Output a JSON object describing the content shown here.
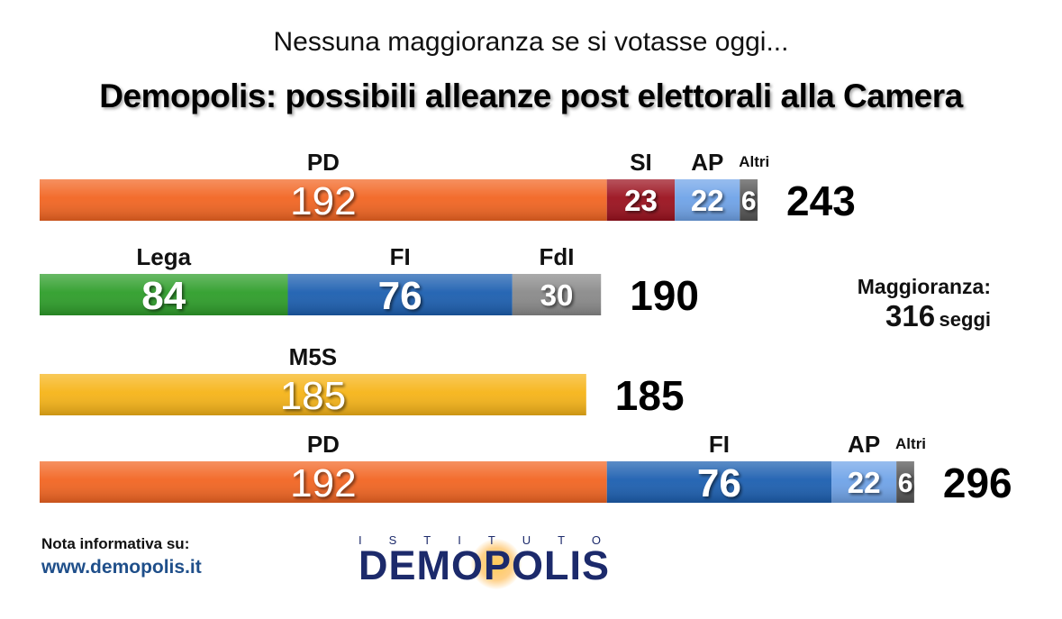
{
  "header": {
    "subtitle": "Nessuna maggioranza se si votasse oggi...",
    "title": "Demopolis: possibili alleanze post elettorali alla Camera"
  },
  "majority": {
    "label": "Maggioranza:",
    "value": "316",
    "unit": "seggi"
  },
  "footer": {
    "note": "Nota informativa su:",
    "url": "www.demopolis.it",
    "logo_top": "ISTITUTO",
    "logo_name": "DEMOPOLIS"
  },
  "chart_data": {
    "type": "bar",
    "orientation": "horizontal-stacked",
    "rows": [
      {
        "total": 243,
        "segments": [
          {
            "name": "PD",
            "value": 192,
            "color": "#f26522"
          },
          {
            "name": "SI",
            "value": 23,
            "color": "#9b111e"
          },
          {
            "name": "AP",
            "value": 22,
            "color": "#6fa3e8"
          },
          {
            "name": "Altri",
            "value": 6,
            "color": "#555555"
          }
        ]
      },
      {
        "total": 190,
        "segments": [
          {
            "name": "Lega",
            "value": 84,
            "color": "#2e9e2a"
          },
          {
            "name": "FI",
            "value": 76,
            "color": "#1c5fb0"
          },
          {
            "name": "FdI",
            "value": 30,
            "color": "#8a8a8a"
          }
        ]
      },
      {
        "total": 185,
        "segments": [
          {
            "name": "M5S",
            "value": 185,
            "color": "#f6b418"
          }
        ]
      },
      {
        "total": 296,
        "segments": [
          {
            "name": "PD",
            "value": 192,
            "color": "#f26522"
          },
          {
            "name": "FI",
            "value": 76,
            "color": "#1c5fb0"
          },
          {
            "name": "AP",
            "value": 22,
            "color": "#6fa3e8"
          },
          {
            "name": "Altri",
            "value": 6,
            "color": "#555555"
          }
        ]
      }
    ]
  }
}
